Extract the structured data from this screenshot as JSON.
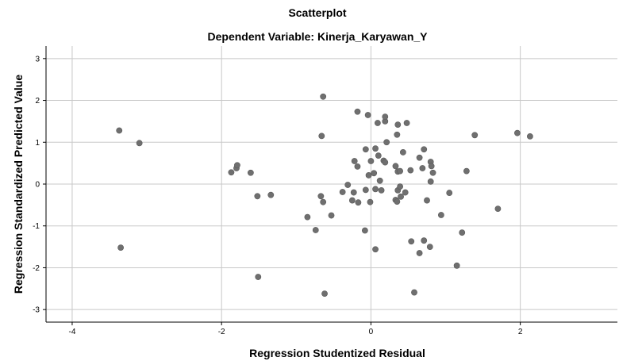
{
  "chart_data": {
    "type": "scatter",
    "title": "Scatterplot",
    "subtitle": "Dependent Variable: Kinerja_Karyawan_Y",
    "xlabel": "Regression Studentized Residual",
    "ylabel": "Regression Standardized Predicted Value",
    "xlim": [
      -4.35,
      3.3
    ],
    "ylim": [
      -3.3,
      3.3
    ],
    "x_ticks": [
      -4,
      -2,
      0,
      2
    ],
    "y_ticks": [
      3,
      2,
      1,
      0,
      -1,
      -2,
      -3
    ],
    "grid": true,
    "point_color": "#6f6f6f",
    "grid_color": "#c8c8c8",
    "points": [
      {
        "x": -3.37,
        "y": 1.28
      },
      {
        "x": -3.1,
        "y": 0.98
      },
      {
        "x": -3.35,
        "y": -1.52
      },
      {
        "x": -1.87,
        "y": 0.28
      },
      {
        "x": -1.8,
        "y": 0.38
      },
      {
        "x": -1.79,
        "y": 0.45
      },
      {
        "x": -1.61,
        "y": 0.27
      },
      {
        "x": -1.52,
        "y": -0.29
      },
      {
        "x": -1.34,
        "y": -0.26
      },
      {
        "x": -1.51,
        "y": -2.22
      },
      {
        "x": -0.64,
        "y": 2.09
      },
      {
        "x": -0.66,
        "y": 1.15
      },
      {
        "x": -0.18,
        "y": 1.73
      },
      {
        "x": -0.04,
        "y": 1.65
      },
      {
        "x": 0.09,
        "y": 1.46
      },
      {
        "x": 0.19,
        "y": 1.5
      },
      {
        "x": 0.19,
        "y": 1.61
      },
      {
        "x": 0.36,
        "y": 1.42
      },
      {
        "x": 0.48,
        "y": 1.46
      },
      {
        "x": 0.35,
        "y": 1.18
      },
      {
        "x": 0.21,
        "y": 1.0
      },
      {
        "x": -0.07,
        "y": 0.83
      },
      {
        "x": 0.06,
        "y": 0.85
      },
      {
        "x": 0.1,
        "y": 0.68
      },
      {
        "x": 0.43,
        "y": 0.76
      },
      {
        "x": 0.71,
        "y": 0.83
      },
      {
        "x": -0.22,
        "y": 0.55
      },
      {
        "x": -0.18,
        "y": 0.42
      },
      {
        "x": 0.0,
        "y": 0.55
      },
      {
        "x": 0.17,
        "y": 0.56
      },
      {
        "x": 0.19,
        "y": 0.52
      },
      {
        "x": 0.33,
        "y": 0.43
      },
      {
        "x": 0.53,
        "y": 0.33
      },
      {
        "x": 0.36,
        "y": 0.3
      },
      {
        "x": 0.39,
        "y": 0.31
      },
      {
        "x": 0.65,
        "y": 0.63
      },
      {
        "x": 0.8,
        "y": 0.53
      },
      {
        "x": 0.81,
        "y": 0.43
      },
      {
        "x": 0.69,
        "y": 0.38
      },
      {
        "x": 0.83,
        "y": 0.27
      },
      {
        "x": -0.03,
        "y": 0.21
      },
      {
        "x": 0.04,
        "y": 0.26
      },
      {
        "x": 0.12,
        "y": 0.08
      },
      {
        "x": 0.8,
        "y": 0.06
      },
      {
        "x": 1.28,
        "y": 0.31
      },
      {
        "x": -0.31,
        "y": -0.02
      },
      {
        "x": -0.38,
        "y": -0.19
      },
      {
        "x": -0.67,
        "y": -0.29
      },
      {
        "x": -0.64,
        "y": -0.43
      },
      {
        "x": -0.23,
        "y": -0.2
      },
      {
        "x": -0.25,
        "y": -0.39
      },
      {
        "x": -0.17,
        "y": -0.44
      },
      {
        "x": -0.07,
        "y": -0.14
      },
      {
        "x": -0.01,
        "y": -0.43
      },
      {
        "x": 0.06,
        "y": -0.12
      },
      {
        "x": 0.14,
        "y": -0.15
      },
      {
        "x": 0.36,
        "y": -0.15
      },
      {
        "x": 0.39,
        "y": -0.06
      },
      {
        "x": 0.4,
        "y": -0.3
      },
      {
        "x": 0.46,
        "y": -0.2
      },
      {
        "x": 0.33,
        "y": -0.38
      },
      {
        "x": 0.35,
        "y": -0.42
      },
      {
        "x": 0.75,
        "y": -0.39
      },
      {
        "x": 1.05,
        "y": -0.21
      },
      {
        "x": -0.53,
        "y": -0.75
      },
      {
        "x": -0.85,
        "y": -0.79
      },
      {
        "x": -0.74,
        "y": -1.1
      },
      {
        "x": -0.08,
        "y": -1.11
      },
      {
        "x": 0.06,
        "y": -1.56
      },
      {
        "x": 0.54,
        "y": -1.37
      },
      {
        "x": 0.71,
        "y": -1.35
      },
      {
        "x": 0.79,
        "y": -1.5
      },
      {
        "x": 0.65,
        "y": -1.65
      },
      {
        "x": 0.94,
        "y": -0.74
      },
      {
        "x": 1.22,
        "y": -1.16
      },
      {
        "x": 1.15,
        "y": -1.95
      },
      {
        "x": 1.7,
        "y": -0.59
      },
      {
        "x": 1.39,
        "y": 1.17
      },
      {
        "x": 1.96,
        "y": 1.22
      },
      {
        "x": 2.13,
        "y": 1.14
      },
      {
        "x": -0.62,
        "y": -2.62
      },
      {
        "x": 0.58,
        "y": -2.59
      }
    ]
  }
}
